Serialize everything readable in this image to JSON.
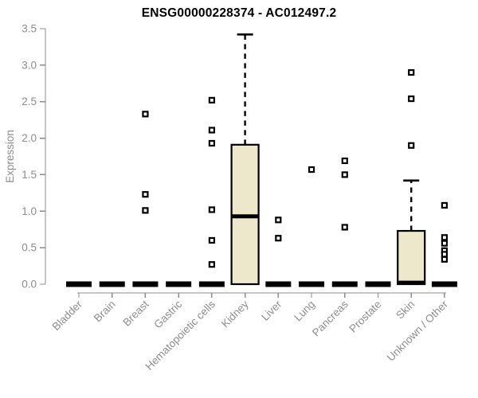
{
  "chart_data": {
    "type": "boxplot",
    "title": "ENSG00000228374 - AC012497.2",
    "ylabel": "Expression",
    "ylim": [
      0,
      3.5
    ],
    "yticks": [
      0.0,
      0.5,
      1.0,
      1.5,
      2.0,
      2.5,
      3.0,
      3.5
    ],
    "categories": [
      "Bladder",
      "Brain",
      "Breast",
      "Gastric",
      "Hematopoietic cells",
      "Kidney",
      "Liver",
      "Lung",
      "Pancreas",
      "Prostate",
      "Skin",
      "Unknown / Other"
    ],
    "boxes": [
      {
        "category": "Bladder",
        "q1": 0,
        "median": 0,
        "q3": 0,
        "whisker_low": 0,
        "whisker_high": 0,
        "outliers": []
      },
      {
        "category": "Brain",
        "q1": 0,
        "median": 0,
        "q3": 0,
        "whisker_low": 0,
        "whisker_high": 0,
        "outliers": []
      },
      {
        "category": "Breast",
        "q1": 0,
        "median": 0,
        "q3": 0,
        "whisker_low": 0,
        "whisker_high": 0,
        "outliers": [
          2.33,
          1.23,
          1.01
        ]
      },
      {
        "category": "Gastric",
        "q1": 0,
        "median": 0,
        "q3": 0,
        "whisker_low": 0,
        "whisker_high": 0,
        "outliers": []
      },
      {
        "category": "Hematopoietic cells",
        "q1": 0,
        "median": 0,
        "q3": 0,
        "whisker_low": 0,
        "whisker_high": 0,
        "outliers": [
          2.52,
          2.11,
          1.93,
          1.02,
          0.6,
          0.27
        ]
      },
      {
        "category": "Kidney",
        "q1": 0,
        "median": 0.93,
        "q3": 1.91,
        "whisker_low": 0,
        "whisker_high": 3.42,
        "outliers": []
      },
      {
        "category": "Liver",
        "q1": 0,
        "median": 0,
        "q3": 0,
        "whisker_low": 0,
        "whisker_high": 0,
        "outliers": [
          0.88,
          0.63
        ]
      },
      {
        "category": "Lung",
        "q1": 0,
        "median": 0,
        "q3": 0,
        "whisker_low": 0,
        "whisker_high": 0,
        "outliers": [
          1.57
        ]
      },
      {
        "category": "Pancreas",
        "q1": 0,
        "median": 0,
        "q3": 0,
        "whisker_low": 0,
        "whisker_high": 0,
        "outliers": [
          1.69,
          1.5,
          0.78
        ]
      },
      {
        "category": "Prostate",
        "q1": 0,
        "median": 0,
        "q3": 0,
        "whisker_low": 0,
        "whisker_high": 0,
        "outliers": []
      },
      {
        "category": "Skin",
        "q1": 0,
        "median": 0.02,
        "q3": 0.73,
        "whisker_low": 0,
        "whisker_high": 1.42,
        "outliers": [
          2.9,
          2.54,
          1.9
        ]
      },
      {
        "category": "Unknown / Other",
        "q1": 0,
        "median": 0,
        "q3": 0,
        "whisker_low": 0,
        "whisker_high": 0,
        "outliers": [
          1.08,
          0.64,
          0.56,
          0.46,
          0.41,
          0.34
        ]
      }
    ],
    "legend": null,
    "grid": false,
    "colors": {
      "box_fill": "#EDE7CC",
      "box_border": "#000000",
      "median": "#000000",
      "whisker": "#000000",
      "outlier_stroke": "#000000",
      "outlier_fill": "#FFFFFF",
      "axis": "#8C8C8C",
      "tick_label": "#8C8C8C",
      "title": "#000000",
      "background": "#FFFFFF"
    }
  }
}
